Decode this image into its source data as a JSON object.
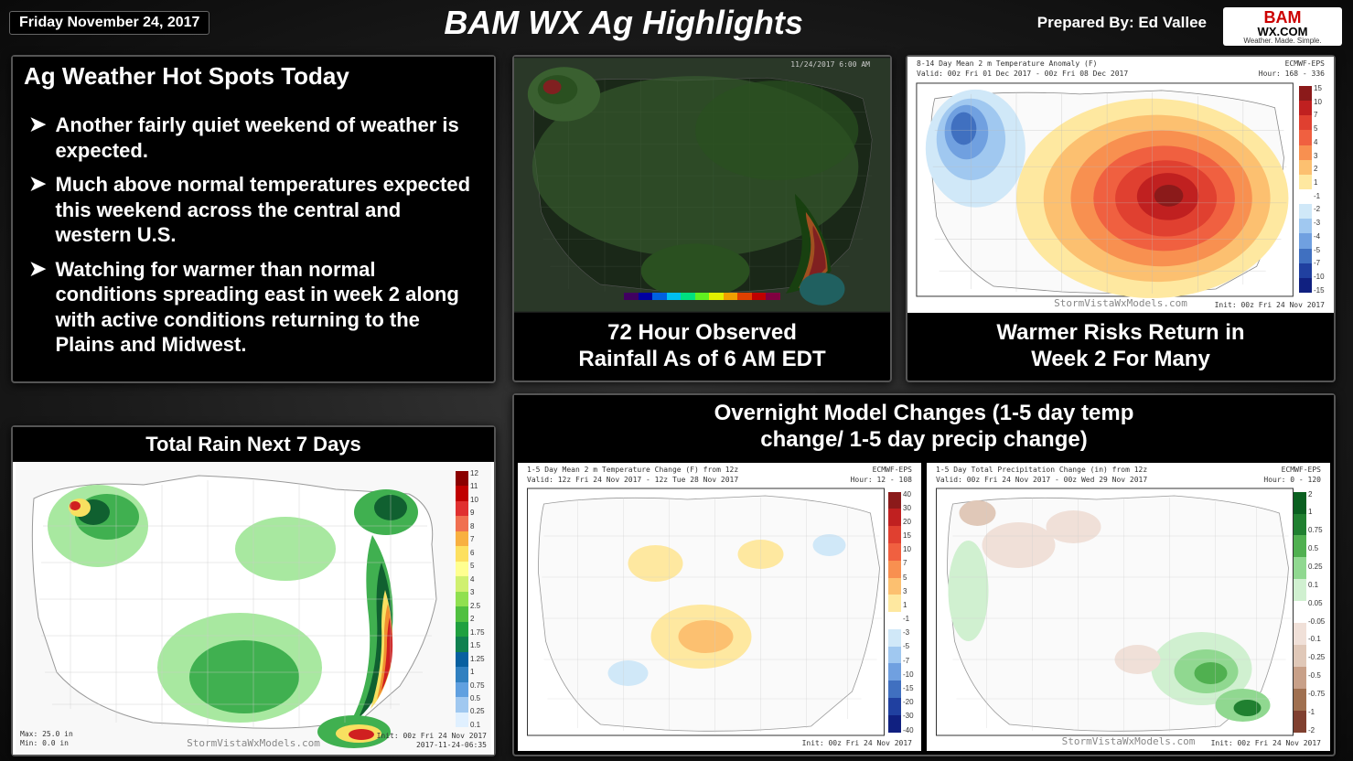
{
  "header": {
    "date": "Friday November 24, 2017",
    "title": "BAM WX Ag Highlights",
    "prepared": "Prepared By: Ed Vallee",
    "logo_top": "BAM",
    "logo_mid": "WX.COM",
    "logo_sub": "Weather. Made. Simple."
  },
  "hotspots": {
    "title": "Ag Weather Hot Spots Today",
    "bullets": [
      "Another fairly quiet weekend of weather is expected.",
      "Much above normal temperatures expected this weekend across the central and western U.S.",
      "Watching for warmer than normal conditions spreading east in week 2 along with active conditions returning to the Plains and Midwest."
    ]
  },
  "totalrain": {
    "title": "Total Rain Next 7 Days",
    "max_label": "Max: 25.0 in",
    "min_label": "Min: 0.0 in",
    "watermark": "StormVistaWxModels.com",
    "init_label": "Init: 00z Fri 24 Nov 2017",
    "ts": "2017-11-24-06:35",
    "colorbar": {
      "colors": [
        "#8b0000",
        "#c00000",
        "#e03030",
        "#f07050",
        "#f8b040",
        "#fde060",
        "#ffff90",
        "#d0f070",
        "#90e050",
        "#50c040",
        "#20a040",
        "#108050",
        "#0860a0",
        "#3080c0",
        "#60a0e0",
        "#a0c8f0",
        "#e0f0ff"
      ],
      "labels": [
        "12",
        "11",
        "10",
        "9",
        "8",
        "7",
        "6",
        "5",
        "4",
        "3",
        "2.5",
        "2",
        "1.75",
        "1.5",
        "1.25",
        "1",
        "0.75",
        "0.5",
        "0.25",
        "0.1"
      ]
    },
    "blob_colors": {
      "land": "#ffffff",
      "ocean": "#f0f0f0",
      "light": "#a8e8a0",
      "med": "#40b050",
      "heavy": "#106030",
      "band_y": "#f8e060",
      "band_o": "#f09030",
      "band_r": "#d02020",
      "band_p": "#701060"
    }
  },
  "obs72": {
    "caption_l1": "72 Hour Observed",
    "caption_l2": "Rainfall As of 6 AM EDT",
    "timestamp": "11/24/2017 6:00 AM",
    "hbar_colors": [
      "#400060",
      "#0000a0",
      "#0060e0",
      "#00c0f0",
      "#00e080",
      "#60f020",
      "#e0f000",
      "#f0a000",
      "#e04000",
      "#c00000",
      "#800040"
    ],
    "bg": "#2a3828",
    "land": "#1a2818",
    "green_light": "#3a6030",
    "green_med": "#2a5020",
    "green_dark": "#184010",
    "red": "#802020",
    "orange": "#a05020",
    "yellow": "#a09020",
    "cyan": "#206060"
  },
  "week2": {
    "caption_l1": "Warmer Risks Return in",
    "caption_l2": "Week 2 For Many",
    "title_text": "8-14 Day Mean 2 m Temperature Anomaly (F)",
    "valid_text": "Valid: 00z Fri 01 Dec 2017 - 00z Fri 08 Dec 2017",
    "hour_text": "Hour: 168 - 336",
    "model": "ECMWF-EPS",
    "watermark": "StormVistaWxModels.com",
    "init": "Init: 00z Fri 24 Nov 2017",
    "colorbar": {
      "colors": [
        "#8b1a1a",
        "#c02020",
        "#e04030",
        "#f06040",
        "#f89050",
        "#fcc070",
        "#fee8a0",
        "#ffffff",
        "#d0e8f8",
        "#a0c8f0",
        "#70a0e0",
        "#4070c0",
        "#2040a0",
        "#102080"
      ],
      "labels": [
        "15",
        "10",
        "7",
        "5",
        "4",
        "3",
        "2",
        "1",
        "-1",
        "-2",
        "-3",
        "-4",
        "-5",
        "-7",
        "-10",
        "-15"
      ]
    },
    "warm": [
      "#fee8a0",
      "#fcc070",
      "#f89050",
      "#f06040",
      "#e04030",
      "#c02020",
      "#8b1a1a"
    ],
    "cold": [
      "#d0e8f8",
      "#a0c8f0",
      "#70a0e0",
      "#4070c0",
      "#2040a0"
    ]
  },
  "changes": {
    "title_l1": "Overnight Model Changes (1-5 day temp",
    "title_l2": "change/ 1-5 day precip change)",
    "temp": {
      "title": "1-5 Day Mean 2 m Temperature Change (F) from 12z",
      "valid": "Valid: 12z Fri 24 Nov 2017 - 12z Tue 28 Nov 2017",
      "hour": "Hour: 12 - 108",
      "model": "ECMWF-EPS",
      "init": "Init: 00z Fri 24 Nov 2017",
      "colorbar": {
        "colors": [
          "#8b1a1a",
          "#c02020",
          "#e04030",
          "#f06040",
          "#f89050",
          "#fcc070",
          "#fee8a0",
          "#ffffff",
          "#d0e8f8",
          "#a0c8f0",
          "#70a0e0",
          "#4070c0",
          "#2040a0",
          "#102080"
        ],
        "labels": [
          "40",
          "30",
          "20",
          "15",
          "10",
          "7",
          "5",
          "3",
          "1",
          "-1",
          "-3",
          "-5",
          "-7",
          "-10",
          "-15",
          "-20",
          "-30",
          "-40"
        ]
      },
      "warm": "#fcc070",
      "warm2": "#fee8a0",
      "cool": "#d0e8f8"
    },
    "precip": {
      "title": "1-5 Day Total Precipitation Change (in) from 12z",
      "valid": "Valid: 00z Fri 24 Nov 2017 - 00z Wed 29 Nov 2017",
      "hour": "Hour: 0 - 120",
      "model": "ECMWF-EPS",
      "watermark": "StormVistaWxModels.com",
      "init": "Init: 00z Fri 24 Nov 2017",
      "colorbar": {
        "colors": [
          "#0a6020",
          "#208030",
          "#50b050",
          "#90d890",
          "#d0f0d0",
          "#ffffff",
          "#f0e0d8",
          "#e0c8b8",
          "#c8a088",
          "#a07050",
          "#804030"
        ],
        "labels": [
          "2",
          "1",
          "0.75",
          "0.5",
          "0.25",
          "0.1",
          "0.05",
          "-0.05",
          "-0.1",
          "-0.25",
          "-0.5",
          "-0.75",
          "-1",
          "-2"
        ]
      },
      "wet": "#90d890",
      "wet2": "#50b050",
      "dry": "#e0c8b8",
      "dry2": "#c8a088"
    }
  }
}
